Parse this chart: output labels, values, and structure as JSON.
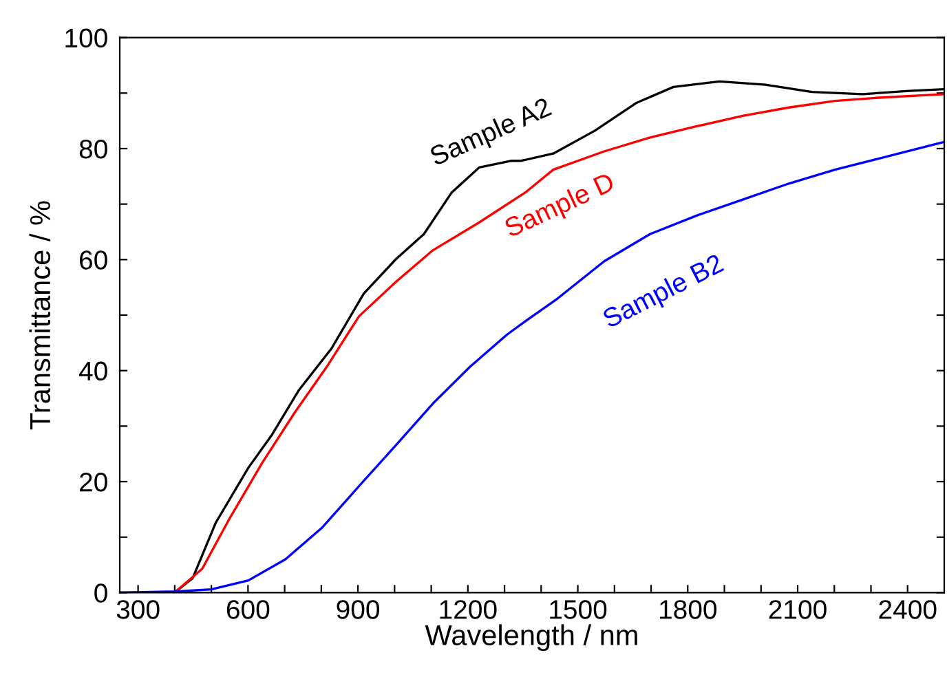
{
  "chart_data": {
    "type": "line",
    "xlabel": "Wavelength / nm",
    "ylabel": "Transmittance / %",
    "xlim": [
      250,
      2500
    ],
    "ylim": [
      0,
      100
    ],
    "xticks": [
      300,
      {
        "value": 400,
        "label": null
      },
      {
        "value": 500,
        "label": null
      },
      600,
      {
        "value": 700,
        "label": null
      },
      {
        "value": 800,
        "label": null
      },
      900,
      {
        "value": 1000,
        "label": null
      },
      {
        "value": 1100,
        "label": null
      },
      1200,
      {
        "value": 1300,
        "label": null
      },
      {
        "value": 1400,
        "label": null
      },
      1500,
      {
        "value": 1600,
        "label": null
      },
      {
        "value": 1700,
        "label": null
      },
      1800,
      {
        "value": 1900,
        "label": null
      },
      {
        "value": 2000,
        "label": null
      },
      2100,
      {
        "value": 2200,
        "label": null
      },
      {
        "value": 2300,
        "label": null
      },
      2400
    ],
    "yticks": [
      0,
      {
        "value": 10,
        "label": null
      },
      20,
      {
        "value": 30,
        "label": null
      },
      40,
      {
        "value": 50,
        "label": null
      },
      60,
      {
        "value": 70,
        "label": null
      },
      80,
      {
        "value": 90,
        "label": null
      },
      100
    ],
    "grid": false,
    "legend": false,
    "marker": "none",
    "line_style": "solid",
    "series": [
      {
        "name": "Sample A2",
        "color": "#000000",
        "x": [
          250,
          399,
          449,
          512,
          601,
          664,
          739,
          828,
          916,
          1004,
          1080,
          1156,
          1231,
          1319,
          1345,
          1433,
          1546,
          1659,
          1761,
          1887,
          2012,
          2139,
          2277,
          2404,
          2500
        ],
        "values": [
          0,
          0,
          2.6,
          12.6,
          22.5,
          28.3,
          36.5,
          44,
          53.9,
          60.1,
          64.6,
          72.1,
          76.6,
          77.8,
          77.8,
          79.1,
          83.2,
          88.2,
          91.1,
          92.1,
          91.5,
          90.2,
          89.8,
          90.4,
          90.7
        ]
      },
      {
        "name": "Sample D",
        "color": "#ff0000",
        "x": [
          250,
          399,
          475,
          550,
          638,
          727,
          815,
          903,
          1004,
          1105,
          1231,
          1357,
          1433,
          1572,
          1697,
          1823,
          1950,
          2076,
          2202,
          2328,
          2500
        ],
        "values": [
          0,
          0,
          4.3,
          13.4,
          23.3,
          32.4,
          40.7,
          49.8,
          56,
          61.7,
          66.7,
          72.1,
          76.2,
          79.5,
          82,
          84,
          85.9,
          87.4,
          88.6,
          89.2,
          89.8
        ]
      },
      {
        "name": "Sample B2",
        "color": "#0000ff",
        "x": [
          250,
          399,
          500,
          601,
          702,
          802,
          903,
          1004,
          1105,
          1206,
          1307,
          1357,
          1445,
          1572,
          1697,
          1823,
          1950,
          2076,
          2202,
          2328,
          2500
        ],
        "values": [
          0,
          0.2,
          0.6,
          2.2,
          6,
          11.7,
          19.2,
          26.6,
          34.1,
          40.7,
          46.5,
          48.9,
          53,
          59.7,
          64.6,
          67.9,
          70.8,
          73.7,
          76.2,
          78.3,
          81.2
        ]
      }
    ]
  }
}
